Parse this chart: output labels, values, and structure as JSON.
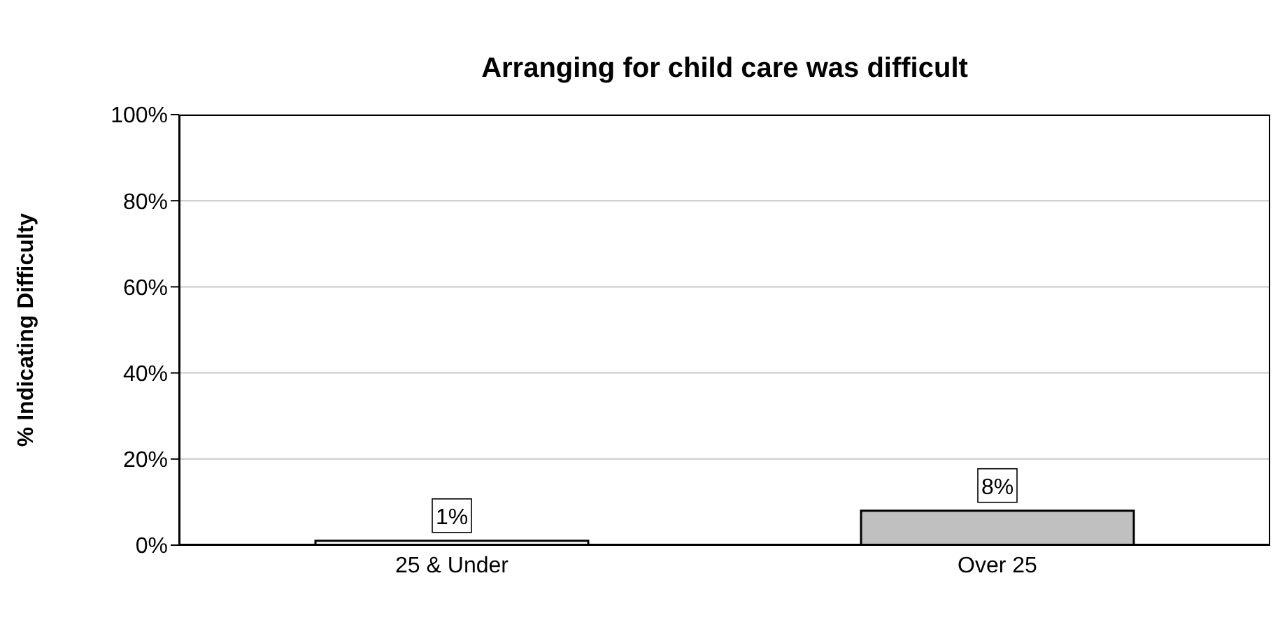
{
  "chart_data": {
    "type": "bar",
    "title": "Arranging for child care was difficult",
    "ylabel": "% Indicating Difficulty",
    "categories": [
      "25 & Under",
      "Over 25"
    ],
    "values": [
      1,
      8
    ],
    "colors": [
      "#ffffff",
      "#c0c0c0"
    ],
    "value_labels": [
      "1%",
      "8%"
    ],
    "ylim": [
      0,
      100
    ],
    "yticks": [
      {
        "value": 0,
        "label": "0%"
      },
      {
        "value": 20,
        "label": "20%"
      },
      {
        "value": 40,
        "label": "40%"
      },
      {
        "value": 60,
        "label": "60%"
      },
      {
        "value": 80,
        "label": "80%"
      },
      {
        "value": 100,
        "label": "100%"
      }
    ],
    "grid": "y"
  }
}
